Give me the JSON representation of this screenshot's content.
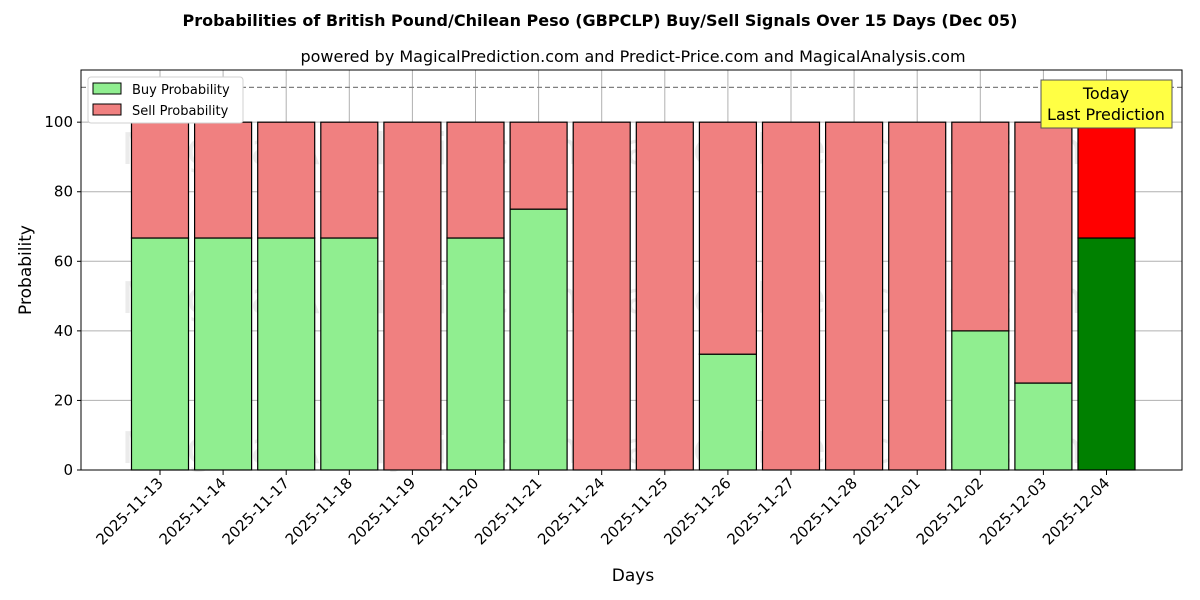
{
  "chart_data": {
    "type": "bar",
    "stacked": true,
    "title": "Probabilities of British Pound/Chilean Peso (GBPCLP) Buy/Sell Signals Over 15 Days (Dec 05)",
    "subtitle": "powered by MagicalPrediction.com and Predict-Price.com and MagicalAnalysis.com",
    "xlabel": "Days",
    "ylabel": "Probability",
    "ylim": [
      0,
      115
    ],
    "yticks": [
      0,
      20,
      40,
      60,
      80,
      100
    ],
    "reference_line": 110,
    "grid": true,
    "legend_position": "upper left",
    "categories": [
      "2025-11-13",
      "2025-11-14",
      "2025-11-17",
      "2025-11-18",
      "2025-11-19",
      "2025-11-20",
      "2025-11-21",
      "2025-11-24",
      "2025-11-25",
      "2025-11-26",
      "2025-11-27",
      "2025-11-28",
      "2025-12-01",
      "2025-12-02",
      "2025-12-03",
      "2025-12-04"
    ],
    "series": [
      {
        "name": "Buy Probability",
        "color": "#90ee90",
        "values": [
          66.7,
          66.7,
          66.7,
          66.7,
          0,
          66.7,
          75,
          0,
          0,
          33.3,
          0,
          0,
          0,
          40,
          25,
          66.7
        ]
      },
      {
        "name": "Sell Probability",
        "color": "#f08080",
        "values": [
          33.3,
          33.3,
          33.3,
          33.3,
          100,
          33.3,
          25,
          100,
          100,
          66.7,
          100,
          100,
          100,
          60,
          75,
          33.3
        ]
      }
    ],
    "highlight": {
      "index": 15,
      "buy_color": "#008000",
      "sell_color": "#ff0000",
      "annotation": [
        "Today",
        "Last Prediction"
      ]
    },
    "watermarks": [
      "MagicalAnalysis.com",
      "MagicalPrediction.com"
    ]
  }
}
